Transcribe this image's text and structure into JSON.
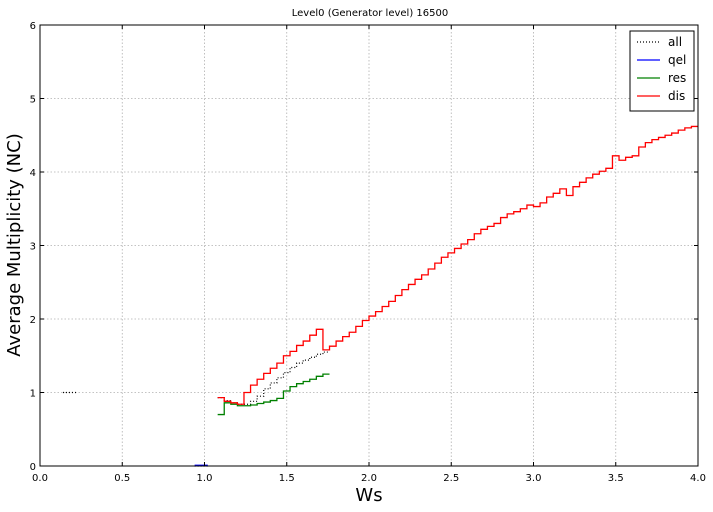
{
  "chart_data": {
    "type": "line",
    "title": "Level0 (Generator level) 16500",
    "xlabel": "Ws",
    "ylabel": "Average Multiplicity (NC)",
    "xlim": [
      0.0,
      4.0
    ],
    "ylim": [
      0,
      6
    ],
    "x_ticks": [
      "0.0",
      "0.5",
      "1.0",
      "1.5",
      "2.0",
      "2.5",
      "3.0",
      "3.5",
      "4.0"
    ],
    "y_ticks": [
      "0",
      "1",
      "2",
      "3",
      "4",
      "5",
      "6"
    ],
    "grid": true,
    "legend_position": "top-right",
    "step_width": 0.04,
    "series": [
      {
        "name": "all",
        "color": "#000000",
        "style": "dotted",
        "x": [
          0.14,
          0.18,
          0.94,
          0.98,
          1.08,
          1.12,
          1.16,
          1.2,
          1.24,
          1.28,
          1.32,
          1.36,
          1.4,
          1.44,
          1.48,
          1.52,
          1.56,
          1.6,
          1.64,
          1.68,
          1.72
        ],
        "values": [
          1.0,
          1.0,
          0.0,
          0.0,
          0.93,
          0.89,
          0.86,
          0.84,
          0.84,
          0.88,
          0.95,
          1.05,
          1.13,
          1.2,
          1.27,
          1.34,
          1.4,
          1.44,
          1.48,
          1.52,
          1.55
        ]
      },
      {
        "name": "qel",
        "color": "#0000ff",
        "style": "solid",
        "x": [
          0.94,
          0.98
        ],
        "values": [
          0.01,
          0.01
        ]
      },
      {
        "name": "res",
        "color": "#008000",
        "style": "solid",
        "x": [
          1.08,
          1.12,
          1.16,
          1.2,
          1.24,
          1.28,
          1.32,
          1.36,
          1.4,
          1.44,
          1.48,
          1.52,
          1.56,
          1.6,
          1.64,
          1.68,
          1.72
        ],
        "values": [
          0.7,
          0.86,
          0.84,
          0.82,
          0.82,
          0.83,
          0.85,
          0.87,
          0.89,
          0.92,
          1.02,
          1.08,
          1.12,
          1.15,
          1.18,
          1.22,
          1.25
        ]
      },
      {
        "name": "dis",
        "color": "#ff0000",
        "style": "solid",
        "x": [
          1.08,
          1.12,
          1.16,
          1.2,
          1.24,
          1.28,
          1.32,
          1.36,
          1.4,
          1.44,
          1.48,
          1.52,
          1.56,
          1.6,
          1.64,
          1.68,
          1.72,
          1.76,
          1.8,
          1.84,
          1.88,
          1.92,
          1.96,
          2.0,
          2.04,
          2.08,
          2.12,
          2.16,
          2.2,
          2.24,
          2.28,
          2.32,
          2.36,
          2.4,
          2.44,
          2.48,
          2.52,
          2.56,
          2.6,
          2.64,
          2.68,
          2.72,
          2.76,
          2.8,
          2.84,
          2.88,
          2.92,
          2.96,
          3.0,
          3.04,
          3.08,
          3.12,
          3.16,
          3.2,
          3.24,
          3.28,
          3.32,
          3.36,
          3.4,
          3.44,
          3.48,
          3.52,
          3.56,
          3.6,
          3.64,
          3.68,
          3.72,
          3.76,
          3.8,
          3.84,
          3.88,
          3.92,
          3.96
        ],
        "values": [
          0.93,
          0.88,
          0.86,
          0.84,
          1.0,
          1.1,
          1.18,
          1.26,
          1.33,
          1.4,
          1.5,
          1.56,
          1.64,
          1.7,
          1.78,
          1.86,
          1.58,
          1.63,
          1.7,
          1.76,
          1.82,
          1.9,
          1.98,
          2.04,
          2.1,
          2.17,
          2.24,
          2.32,
          2.4,
          2.47,
          2.54,
          2.6,
          2.68,
          2.76,
          2.84,
          2.9,
          2.96,
          3.02,
          3.08,
          3.16,
          3.22,
          3.26,
          3.3,
          3.38,
          3.43,
          3.46,
          3.5,
          3.55,
          3.53,
          3.58,
          3.66,
          3.71,
          3.77,
          3.68,
          3.8,
          3.86,
          3.92,
          3.97,
          4.01,
          4.05,
          4.22,
          4.16,
          4.2,
          4.22,
          4.34,
          4.4,
          4.44,
          4.47,
          4.5,
          4.53,
          4.57,
          4.6,
          4.62
        ]
      }
    ]
  }
}
